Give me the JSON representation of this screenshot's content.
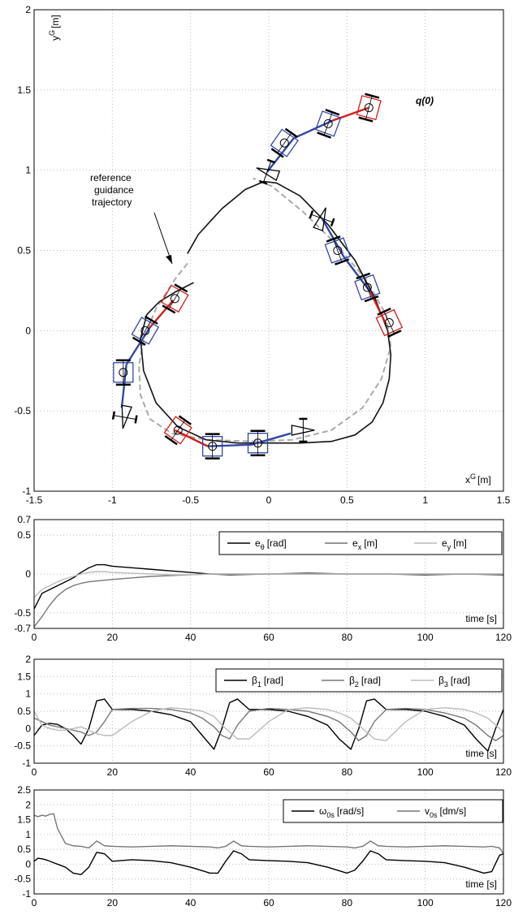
{
  "chart_data": [
    {
      "type": "line",
      "panel": "trajectory",
      "xlabel_base": "x",
      "xlabel_sup": "G",
      "xlabel_unit": "[m]",
      "ylabel_base": "y",
      "ylabel_sup": "G",
      "ylabel_unit": "[m]",
      "xlim": [
        -1.5,
        1.5
      ],
      "ylim": [
        -1,
        2
      ],
      "xticks": [
        "-1.5",
        "-1",
        "-0.5",
        "0",
        "0.5",
        "1",
        "1.5"
      ],
      "yticks": [
        "-1",
        "-0.5",
        "0",
        "0.5",
        "1",
        "1.5",
        "2"
      ],
      "annotations": {
        "q0": "q(0)",
        "reference_line1": "reference",
        "reference_line2": "guidance",
        "reference_line3": "trajectory"
      },
      "series": [
        {
          "style": "reference (dashed gray)",
          "x": [
            -0.52,
            -0.6,
            -0.72,
            -0.8,
            -0.83,
            -0.82,
            -0.76,
            -0.62,
            -0.4,
            -0.1,
            0.15,
            0.4,
            0.6,
            0.72,
            0.78,
            0.75,
            0.62,
            0.42,
            0.22,
            0.02,
            -0.1
          ],
          "y": [
            0.42,
            0.32,
            0.14,
            -0.05,
            -0.22,
            -0.4,
            -0.55,
            -0.64,
            -0.68,
            -0.69,
            -0.68,
            -0.62,
            -0.48,
            -0.3,
            -0.1,
            0.1,
            0.32,
            0.55,
            0.74,
            0.9,
            0.95
          ]
        },
        {
          "style": "actual (solid black)",
          "x": [
            -0.52,
            -0.45,
            -0.3,
            -0.15,
            -0.03,
            0.05,
            0.2,
            0.38,
            0.55,
            0.68,
            0.76,
            0.78,
            0.77,
            0.73,
            0.66,
            0.55,
            0.4,
            0.2,
            0.0,
            -0.2,
            -0.4,
            -0.58,
            -0.72,
            -0.8,
            -0.82,
            -0.78,
            -0.7,
            -0.6,
            -0.48
          ],
          "y": [
            0.48,
            0.6,
            0.76,
            0.88,
            0.93,
            0.92,
            0.84,
            0.66,
            0.44,
            0.2,
            0.0,
            -0.15,
            -0.3,
            -0.45,
            -0.57,
            -0.65,
            -0.69,
            -0.7,
            -0.7,
            -0.7,
            -0.68,
            -0.6,
            -0.45,
            -0.25,
            -0.05,
            0.1,
            0.18,
            0.24,
            0.3
          ]
        }
      ]
    },
    {
      "type": "line",
      "panel": "errors",
      "xlabel": "time [s]",
      "xlim": [
        0,
        120
      ],
      "ylim": [
        -0.7,
        0.7
      ],
      "xticks": [
        "0",
        "20",
        "40",
        "60",
        "80",
        "100",
        "120"
      ],
      "yticks": [
        "-0.7",
        "-0.5",
        "0",
        "0.5",
        "0.7"
      ],
      "legend_position": "top-right",
      "x": [
        0,
        2,
        4,
        6,
        8,
        10,
        12,
        14,
        16,
        18,
        20,
        25,
        30,
        35,
        40,
        45,
        50,
        60,
        70,
        80,
        90,
        100,
        110,
        120
      ],
      "series": [
        {
          "name_base": "e",
          "name_sub": "θ",
          "name_unit": "[rad]",
          "color": "#000000",
          "values": [
            -0.45,
            -0.25,
            -0.2,
            -0.15,
            -0.1,
            -0.05,
            0.02,
            0.08,
            0.12,
            0.12,
            0.1,
            0.08,
            0.06,
            0.04,
            0.02,
            0.0,
            -0.01,
            0.0,
            0.01,
            0.0,
            0.0,
            -0.01,
            0.0,
            -0.01
          ]
        },
        {
          "name_base": "e",
          "name_sub": "x",
          "name_unit": "[m]",
          "color": "#777777",
          "values": [
            -0.68,
            -0.55,
            -0.4,
            -0.28,
            -0.2,
            -0.15,
            -0.12,
            -0.1,
            -0.09,
            -0.08,
            -0.07,
            -0.05,
            -0.03,
            -0.02,
            -0.01,
            0.0,
            0.0,
            0.0,
            0.0,
            0.0,
            0.0,
            0.0,
            0.0,
            0.0
          ]
        },
        {
          "name_base": "e",
          "name_sub": "y",
          "name_unit": "[m]",
          "color": "#bbbbbb",
          "values": [
            -0.3,
            -0.2,
            -0.15,
            -0.1,
            -0.06,
            -0.03,
            0.0,
            0.02,
            0.03,
            0.03,
            0.02,
            0.01,
            0.0,
            -0.01,
            -0.01,
            0.0,
            0.0,
            0.0,
            0.0,
            0.0,
            0.0,
            0.0,
            0.0,
            0.0
          ]
        }
      ]
    },
    {
      "type": "line",
      "panel": "steering",
      "xlabel": "time [s]",
      "xlim": [
        0,
        120
      ],
      "ylim": [
        -1,
        2
      ],
      "xticks": [
        "0",
        "20",
        "40",
        "60",
        "80",
        "100",
        "120"
      ],
      "yticks": [
        "-1",
        "-0.5",
        "0",
        "0.5",
        "1",
        "1.5",
        "2"
      ],
      "legend_position": "top-right",
      "x": [
        0,
        2,
        4,
        6,
        8,
        10,
        12,
        14,
        16,
        18,
        20,
        25,
        30,
        35,
        40,
        43,
        46,
        48,
        50,
        52,
        55,
        60,
        65,
        70,
        75,
        78,
        81,
        83,
        85,
        87,
        90,
        95,
        100,
        105,
        110,
        113,
        116,
        118,
        120
      ],
      "series": [
        {
          "name_base": "β",
          "name_sub": "1",
          "name_unit": "[rad]",
          "color": "#000000",
          "values": [
            -0.2,
            0.1,
            0.15,
            0.12,
            0.0,
            -0.2,
            -0.45,
            0.0,
            0.8,
            0.85,
            0.55,
            0.55,
            0.5,
            0.4,
            0.2,
            -0.2,
            -0.6,
            0.0,
            0.75,
            0.85,
            0.55,
            0.55,
            0.5,
            0.35,
            0.1,
            -0.3,
            -0.6,
            0.0,
            0.8,
            0.85,
            0.55,
            0.55,
            0.5,
            0.35,
            0.1,
            -0.3,
            -0.65,
            0.0,
            0.55
          ]
        },
        {
          "name_base": "β",
          "name_sub": "2",
          "name_unit": "[rad]",
          "color": "#777777",
          "values": [
            0.3,
            0.2,
            0.1,
            0.05,
            0.0,
            -0.05,
            -0.1,
            -0.2,
            -0.1,
            0.2,
            0.55,
            0.58,
            0.58,
            0.55,
            0.45,
            0.3,
            0.05,
            -0.2,
            -0.3,
            0.1,
            0.5,
            0.58,
            0.55,
            0.5,
            0.35,
            0.2,
            -0.1,
            -0.35,
            -0.2,
            0.2,
            0.55,
            0.58,
            0.55,
            0.45,
            0.3,
            0.1,
            -0.2,
            -0.35,
            -0.2
          ]
        },
        {
          "name_base": "β",
          "name_sub": "3",
          "name_unit": "[rad]",
          "color": "#bbbbbb",
          "values": [
            0.5,
            0.1,
            0.0,
            -0.05,
            -0.05,
            0.0,
            0.05,
            -0.05,
            -0.15,
            -0.2,
            -0.2,
            0.2,
            0.5,
            0.6,
            0.55,
            0.5,
            0.35,
            0.1,
            -0.1,
            -0.3,
            -0.3,
            0.2,
            0.55,
            0.6,
            0.55,
            0.45,
            0.3,
            0.1,
            -0.1,
            -0.3,
            -0.35,
            0.2,
            0.55,
            0.6,
            0.55,
            0.45,
            0.3,
            0.1,
            -0.1
          ]
        }
      ]
    },
    {
      "type": "line",
      "panel": "velocities",
      "xlabel": "time [s]",
      "xlim": [
        0,
        120
      ],
      "ylim": [
        -1,
        2.5
      ],
      "xticks": [
        "0",
        "20",
        "40",
        "60",
        "80",
        "100",
        "120"
      ],
      "yticks": [
        "-1",
        "-0.5",
        "0",
        "0.5",
        "1",
        "1.5",
        "2",
        "2.5"
      ],
      "legend_position": "top-right",
      "x": [
        0,
        1,
        2,
        3,
        4,
        5,
        6,
        8,
        10,
        12,
        14,
        16,
        18,
        20,
        25,
        30,
        35,
        40,
        45,
        47,
        49,
        51,
        53,
        55,
        60,
        65,
        70,
        75,
        80,
        82,
        84,
        86,
        88,
        90,
        95,
        100,
        105,
        110,
        115,
        117,
        119,
        120
      ],
      "series": [
        {
          "name_base": "ω",
          "name_sub": "0s",
          "name_unit": "[rad/s]",
          "color": "#000000",
          "values": [
            0.1,
            0.2,
            0.18,
            0.15,
            0.1,
            0.05,
            0.0,
            -0.1,
            -0.3,
            -0.35,
            -0.1,
            0.4,
            0.35,
            0.1,
            0.15,
            0.12,
            0.05,
            -0.1,
            -0.3,
            -0.3,
            0.1,
            0.45,
            0.35,
            0.15,
            0.12,
            0.1,
            0.05,
            -0.1,
            -0.3,
            -0.2,
            0.1,
            0.45,
            0.35,
            0.15,
            0.12,
            0.1,
            0.05,
            -0.1,
            -0.3,
            -0.25,
            0.3,
            0.35
          ]
        },
        {
          "name_base": "v",
          "name_sub": "0s",
          "name_unit": "[dm/s]",
          "color": "#777777",
          "values": [
            1.65,
            1.6,
            1.65,
            1.62,
            1.68,
            1.7,
            1.2,
            0.7,
            0.62,
            0.6,
            0.55,
            0.78,
            0.62,
            0.6,
            0.58,
            0.6,
            0.62,
            0.6,
            0.58,
            0.55,
            0.6,
            0.78,
            0.62,
            0.6,
            0.58,
            0.6,
            0.62,
            0.6,
            0.58,
            0.55,
            0.6,
            0.78,
            0.62,
            0.6,
            0.58,
            0.6,
            0.62,
            0.6,
            0.58,
            0.6,
            0.55,
            0.35
          ]
        }
      ]
    }
  ]
}
